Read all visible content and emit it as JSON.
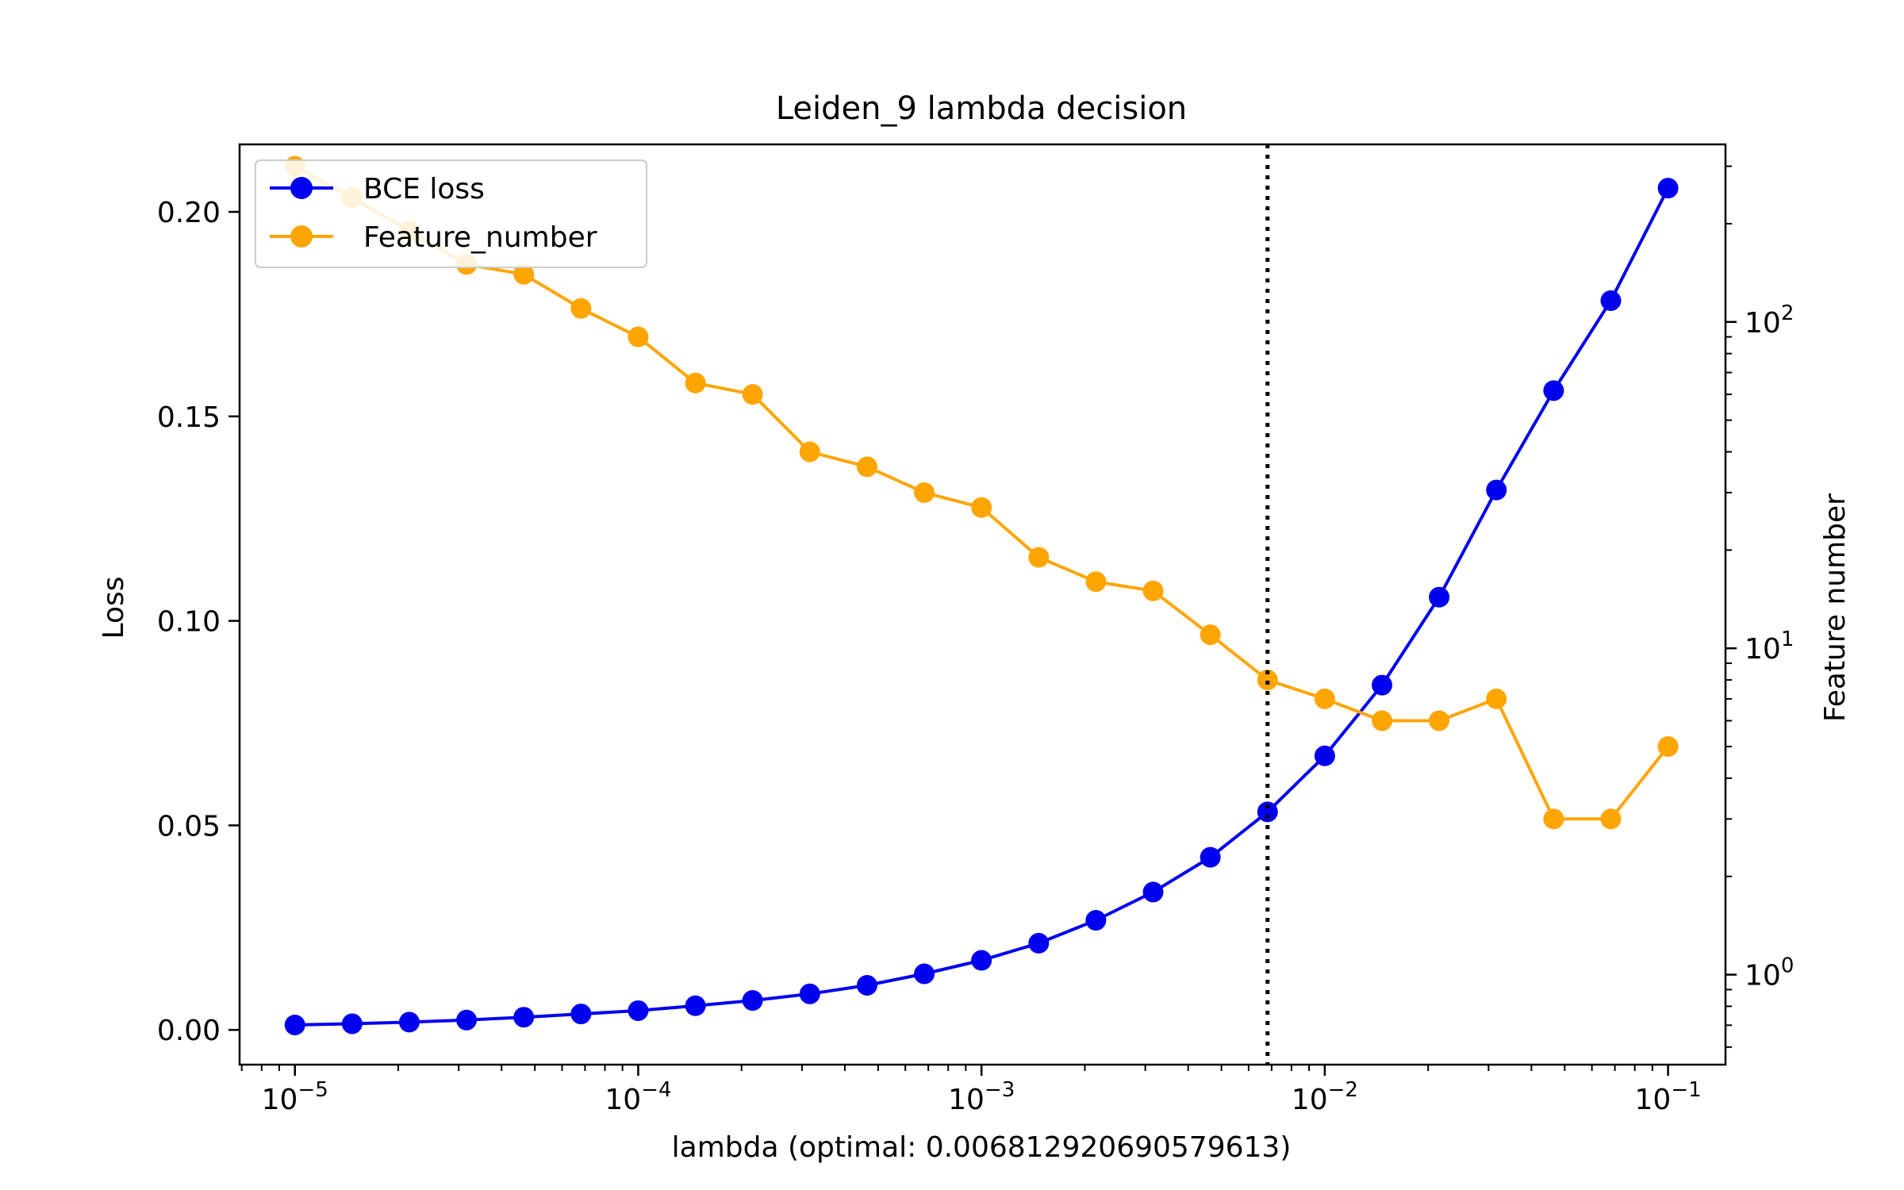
{
  "chart_data": {
    "type": "line",
    "title": "Leiden_9 lambda decision",
    "xlabel": "lambda (optimal: 0.006812920690579613)",
    "ylabel": "Loss",
    "y2label": "Feature number",
    "xscale": "log",
    "xlim": [
      6.9e-06,
      0.147
    ],
    "ylim": [
      -0.0085,
      0.2165
    ],
    "y2scale": "log",
    "y2lim": [
      0.53,
      350
    ],
    "x_ticks": [
      {
        "value": 1e-05,
        "base": "10",
        "exp": "−5"
      },
      {
        "value": 0.0001,
        "base": "10",
        "exp": "−4"
      },
      {
        "value": 0.001,
        "base": "10",
        "exp": "−3"
      },
      {
        "value": 0.01,
        "base": "10",
        "exp": "−2"
      },
      {
        "value": 0.1,
        "base": "10",
        "exp": "−1"
      }
    ],
    "y_ticks": [
      {
        "value": 0.0,
        "label": "0.00"
      },
      {
        "value": 0.05,
        "label": "0.05"
      },
      {
        "value": 0.1,
        "label": "0.10"
      },
      {
        "value": 0.15,
        "label": "0.15"
      },
      {
        "value": 0.2,
        "label": "0.20"
      }
    ],
    "y2_ticks": [
      {
        "value": 1,
        "base": "10",
        "exp": "0"
      },
      {
        "value": 10,
        "base": "10",
        "exp": "1"
      },
      {
        "value": 100,
        "base": "10",
        "exp": "2"
      }
    ],
    "vline": {
      "x": 0.006812920690579613,
      "style": "dotted",
      "color": "#000000"
    },
    "legend_position": "upper-left",
    "x": [
      1e-05,
      1.468e-05,
      2.154e-05,
      3.162e-05,
      4.642e-05,
      6.813e-05,
      0.0001,
      0.0001468,
      0.0002154,
      0.0003162,
      0.0004642,
      0.0006813,
      0.001,
      0.001468,
      0.002154,
      0.003162,
      0.004642,
      0.006813,
      0.01,
      0.01468,
      0.02154,
      0.03162,
      0.04642,
      0.06813,
      0.1
    ],
    "series": [
      {
        "name": "BCE loss",
        "axis": "left",
        "color": "#0000ee",
        "values": [
          0.0012,
          0.0015,
          0.0019,
          0.0024,
          0.0031,
          0.0039,
          0.0047,
          0.0059,
          0.0072,
          0.0088,
          0.0109,
          0.0137,
          0.017,
          0.0212,
          0.0268,
          0.0337,
          0.0422,
          0.0533,
          0.067,
          0.0843,
          0.1058,
          0.132,
          0.1563,
          0.1783,
          0.2058
        ]
      },
      {
        "name": "Feature_number",
        "axis": "right",
        "color": "#ffa500",
        "values": [
          300,
          240,
          190,
          150,
          140,
          110,
          90,
          65,
          60,
          40,
          36,
          30,
          27,
          19,
          16,
          15,
          11,
          8,
          7,
          6,
          6,
          7,
          3,
          3,
          5
        ]
      }
    ]
  }
}
